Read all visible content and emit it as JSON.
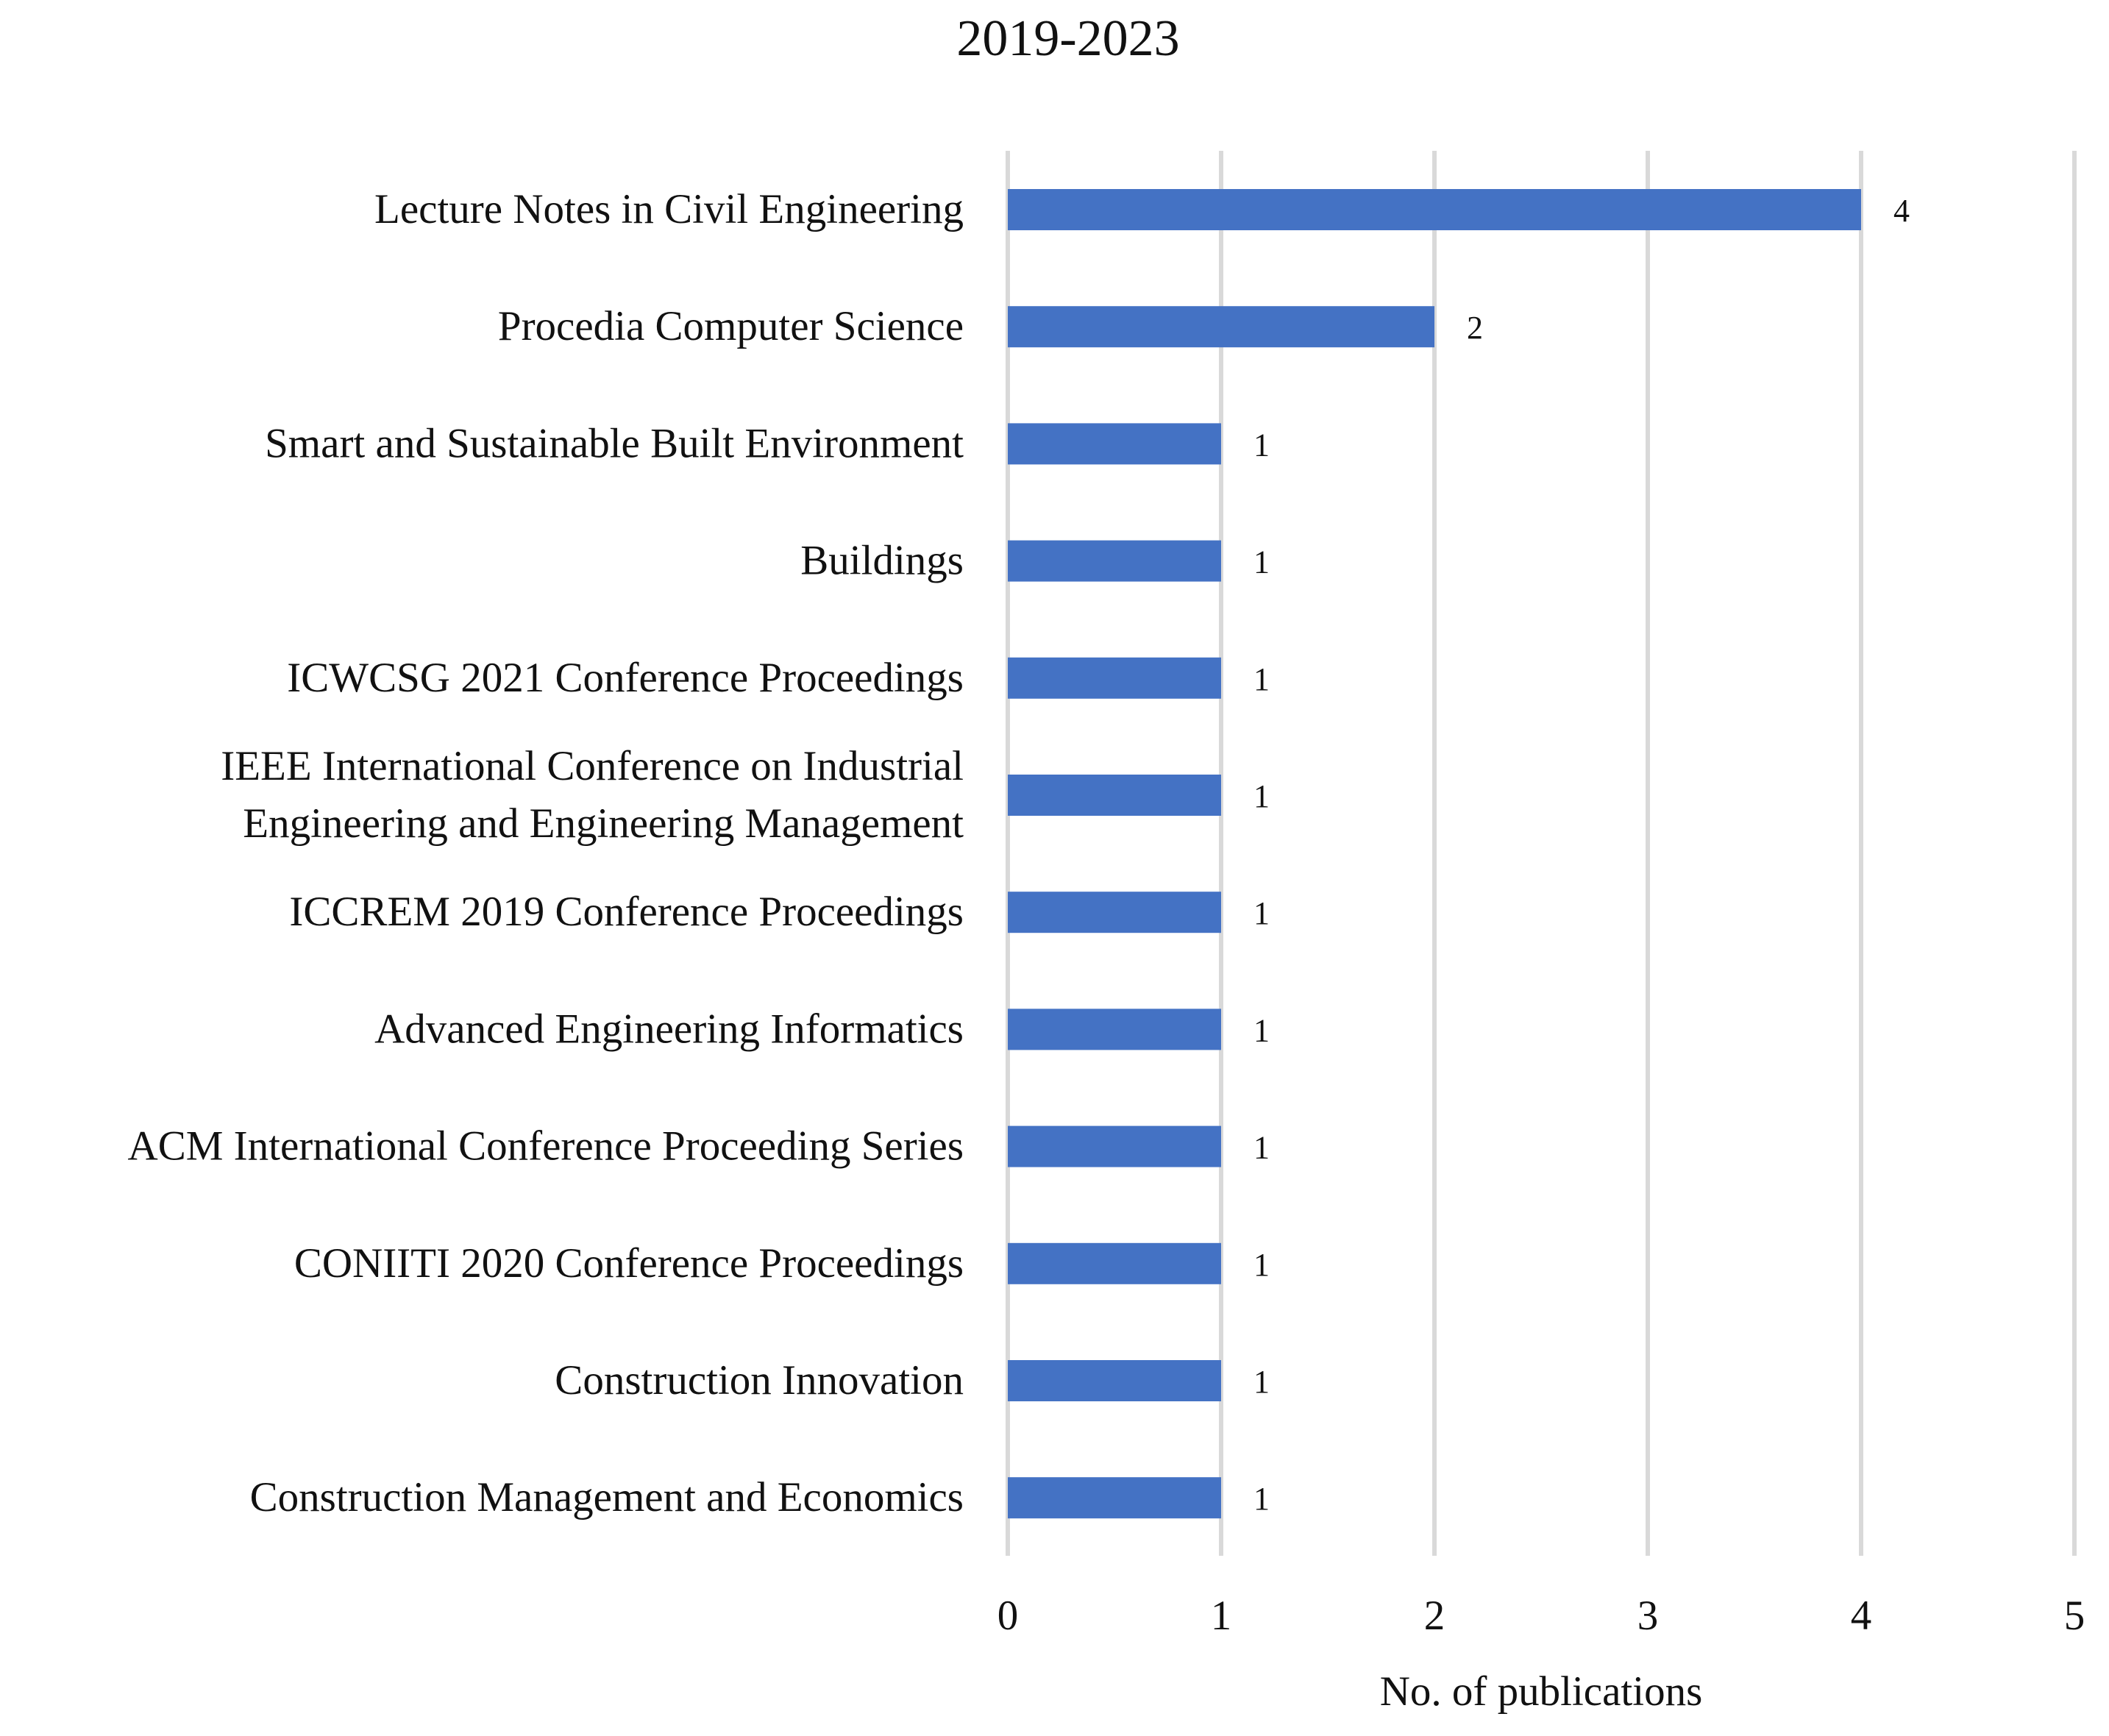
{
  "chart_data": {
    "type": "bar",
    "orientation": "horizontal",
    "title": "2019-2023",
    "xlabel": "No. of publications",
    "ylabel": "",
    "xlim": [
      0,
      5
    ],
    "ticks": [
      0,
      1,
      2,
      3,
      4,
      5
    ],
    "grid": true,
    "bar_color": "#4472C4",
    "grid_color": "#D9D9D9",
    "categories": [
      [
        "Lecture Notes in Civil Engineering"
      ],
      [
        "Procedia Computer Science"
      ],
      [
        "Smart and Sustainable Built Environment"
      ],
      [
        "Buildings"
      ],
      [
        "ICWCSG 2021 Conference Proceedings"
      ],
      [
        "IEEE International Conference on Industrial",
        "Engineering and Engineering Management"
      ],
      [
        "ICCREM 2019 Conference Proceedings"
      ],
      [
        "Advanced Engineering Informatics"
      ],
      [
        "ACM International Conference Proceeding Series"
      ],
      [
        "CONIITI 2020 Conference Proceedings"
      ],
      [
        "Construction Innovation"
      ],
      [
        "Construction Management and Economics"
      ]
    ],
    "values": [
      4,
      2,
      1,
      1,
      1,
      1,
      1,
      1,
      1,
      1,
      1,
      1
    ],
    "data_labels": [
      "4",
      "2",
      "1",
      "1",
      "1",
      "1",
      "1",
      "1",
      "1",
      "1",
      "1",
      "1"
    ]
  }
}
